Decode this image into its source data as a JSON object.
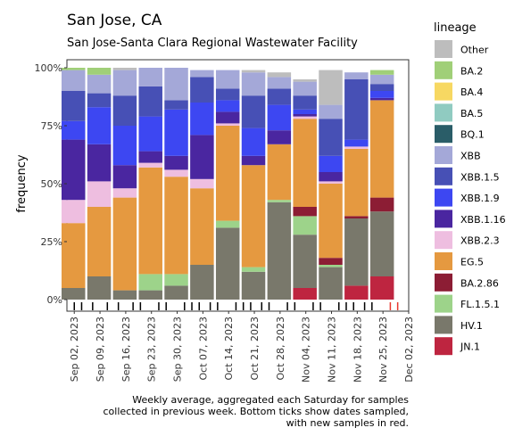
{
  "chart_data": {
    "type": "bar",
    "title": "San Jose, CA",
    "subtitle": "San Jose-Santa Clara Regional Wastewater Facility",
    "ylabel": "frequency",
    "xlabel": "",
    "ylim": [
      0,
      1
    ],
    "y_ticks": [
      "0%",
      "25%",
      "50%",
      "75%",
      "100%"
    ],
    "x_ticks": [
      "Sep 02, 2023",
      "Sep 09, 2023",
      "Sep 16, 2023",
      "Sep 23, 2023",
      "Sep 30, 2023",
      "Oct 07, 2023",
      "Oct 14, 2023",
      "Oct 21, 2023",
      "Oct 28, 2023",
      "Nov 04, 2023",
      "Nov 11, 2023",
      "Nov 18, 2023",
      "Nov 25, 2023",
      "Dec 02, 2023"
    ],
    "legend_title": "lineage",
    "legend_position": "right",
    "stack_order_bottom_to_top": [
      "JN.1",
      "HV.1",
      "FL.1.5.1",
      "BA.2.86",
      "EG.5",
      "XBB.2.3",
      "XBB.1.16",
      "XBB.1.9",
      "XBB.1.5",
      "XBB",
      "BQ.1",
      "BA.5",
      "BA.4",
      "BA.2",
      "Other"
    ],
    "legend": [
      {
        "name": "Other",
        "color": "#bdbdbd"
      },
      {
        "name": "BA.2",
        "color": "#a0cf78"
      },
      {
        "name": "BA.4",
        "color": "#f7d862"
      },
      {
        "name": "BA.5",
        "color": "#90cbc1"
      },
      {
        "name": "BQ.1",
        "color": "#2a5d68"
      },
      {
        "name": "XBB",
        "color": "#a4a8d8"
      },
      {
        "name": "XBB.1.5",
        "color": "#4750b5"
      },
      {
        "name": "XBB.1.9",
        "color": "#3d47f2"
      },
      {
        "name": "XBB.1.16",
        "color": "#4a26a0"
      },
      {
        "name": "XBB.2.3",
        "color": "#eebee0"
      },
      {
        "name": "EG.5",
        "color": "#e59940"
      },
      {
        "name": "BA.2.86",
        "color": "#8c1d34"
      },
      {
        "name": "FL.1.5.1",
        "color": "#9dd38a"
      },
      {
        "name": "HV.1",
        "color": "#79786b"
      },
      {
        "name": "JN.1",
        "color": "#be2540"
      }
    ],
    "bars": [
      {
        "date": "2023-09-02",
        "Other": 0.0,
        "BA.2": 0.01,
        "XBB": 0.09,
        "XBB.1.5": 0.13,
        "XBB.1.9": 0.08,
        "XBB.1.16": 0.26,
        "XBB.2.3": 0.1,
        "EG.5": 0.28,
        "HV.1": 0.05
      },
      {
        "date": "2023-09-09",
        "BA.2": 0.03,
        "XBB": 0.08,
        "XBB.1.5": 0.06,
        "XBB.1.9": 0.16,
        "XBB.1.16": 0.16,
        "XBB.2.3": 0.11,
        "EG.5": 0.3,
        "HV.1": 0.1
      },
      {
        "date": "2023-09-16",
        "Other": 0.01,
        "XBB": 0.11,
        "XBB.1.5": 0.13,
        "XBB.1.9": 0.17,
        "XBB.1.16": 0.1,
        "XBB.2.3": 0.04,
        "EG.5": 0.4,
        "HV.1": 0.04
      },
      {
        "date": "2023-09-23",
        "XBB": 0.08,
        "XBB.1.5": 0.13,
        "XBB.1.9": 0.15,
        "XBB.1.16": 0.05,
        "XBB.2.3": 0.02,
        "EG.5": 0.46,
        "FL.1.5.1": 0.07,
        "HV.1": 0.04
      },
      {
        "date": "2023-09-30",
        "XBB": 0.14,
        "XBB.1.5": 0.04,
        "XBB.1.9": 0.2,
        "XBB.1.16": 0.06,
        "XBB.2.3": 0.03,
        "EG.5": 0.42,
        "FL.1.5.1": 0.05,
        "HV.1": 0.06
      },
      {
        "date": "2023-10-07",
        "XBB": 0.03,
        "XBB.1.5": 0.11,
        "XBB.1.9": 0.14,
        "XBB.1.16": 0.19,
        "XBB.2.3": 0.04,
        "EG.5": 0.33,
        "HV.1": 0.15
      },
      {
        "date": "2023-10-14",
        "XBB": 0.08,
        "XBB.1.5": 0.05,
        "XBB.1.9": 0.05,
        "XBB.1.16": 0.05,
        "XBB.2.3": 0.01,
        "EG.5": 0.41,
        "FL.1.5.1": 0.03,
        "HV.1": 0.31
      },
      {
        "date": "2023-10-21",
        "Other": 0.01,
        "XBB": 0.1,
        "XBB.1.5": 0.14,
        "XBB.1.9": 0.12,
        "XBB.1.16": 0.04,
        "EG.5": 0.44,
        "FL.1.5.1": 0.02,
        "HV.1": 0.12
      },
      {
        "date": "2023-10-28",
        "Other": 0.02,
        "XBB": 0.05,
        "XBB.1.5": 0.07,
        "XBB.1.9": 0.11,
        "XBB.1.16": 0.06,
        "EG.5": 0.24,
        "FL.1.5.1": 0.01,
        "HV.1": 0.42
      },
      {
        "date": "2023-11-04",
        "Other": 0.01,
        "XBB": 0.06,
        "XBB.1.5": 0.06,
        "XBB.1.9": 0.02,
        "XBB.1.16": 0.01,
        "XBB.2.3": 0.01,
        "EG.5": 0.38,
        "BA.2.86": 0.04,
        "FL.1.5.1": 0.08,
        "HV.1": 0.23,
        "JN.1": 0.05
      },
      {
        "date": "2023-11-11",
        "Other": 0.15,
        "XBB": 0.06,
        "XBB.1.5": 0.16,
        "XBB.1.9": 0.07,
        "XBB.1.16": 0.04,
        "XBB.2.3": 0.01,
        "EG.5": 0.32,
        "BA.2.86": 0.03,
        "FL.1.5.1": 0.01,
        "HV.1": 0.14
      },
      {
        "date": "2023-11-18",
        "Other": 0.0,
        "XBB": 0.03,
        "XBB.1.5": 0.26,
        "XBB.1.9": 0.03,
        "XBB.2.3": 0.01,
        "EG.5": 0.29,
        "BA.2.86": 0.01,
        "HV.1": 0.29,
        "JN.1": 0.06
      },
      {
        "date": "2023-11-25",
        "BA.2": 0.02,
        "XBB": 0.04,
        "XBB.1.5": 0.03,
        "XBB.1.9": 0.03,
        "XBB.1.16": 0.01,
        "EG.5": 0.42,
        "BA.2.86": 0.06,
        "HV.1": 0.28,
        "JN.1": 0.1
      }
    ],
    "sample_ticks": [
      {
        "date": "2023-09-02"
      },
      {
        "date": "2023-09-04"
      },
      {
        "date": "2023-09-07"
      },
      {
        "date": "2023-09-11"
      },
      {
        "date": "2023-09-14"
      },
      {
        "date": "2023-09-18"
      },
      {
        "date": "2023-09-20"
      },
      {
        "date": "2023-09-25"
      },
      {
        "date": "2023-09-27"
      },
      {
        "date": "2023-10-02"
      },
      {
        "date": "2023-10-04"
      },
      {
        "date": "2023-10-06"
      },
      {
        "date": "2023-10-09"
      },
      {
        "date": "2023-10-11"
      },
      {
        "date": "2023-10-16"
      },
      {
        "date": "2023-10-18"
      },
      {
        "date": "2023-10-20"
      },
      {
        "date": "2023-10-23"
      },
      {
        "date": "2023-10-25"
      },
      {
        "date": "2023-10-30"
      },
      {
        "date": "2023-11-01"
      },
      {
        "date": "2023-11-06"
      },
      {
        "date": "2023-11-08"
      },
      {
        "date": "2023-11-13"
      },
      {
        "date": "2023-11-15"
      },
      {
        "date": "2023-11-17"
      },
      {
        "date": "2023-11-20"
      },
      {
        "date": "2023-11-22"
      },
      {
        "date": "2023-11-27",
        "color": "#e8382f"
      },
      {
        "date": "2023-11-29",
        "color": "#e8382f"
      }
    ],
    "caption": [
      "Weekly average, aggregated each Saturday for samples",
      "collected in previous week. Bottom ticks show dates sampled,",
      "with new samples in red."
    ]
  }
}
